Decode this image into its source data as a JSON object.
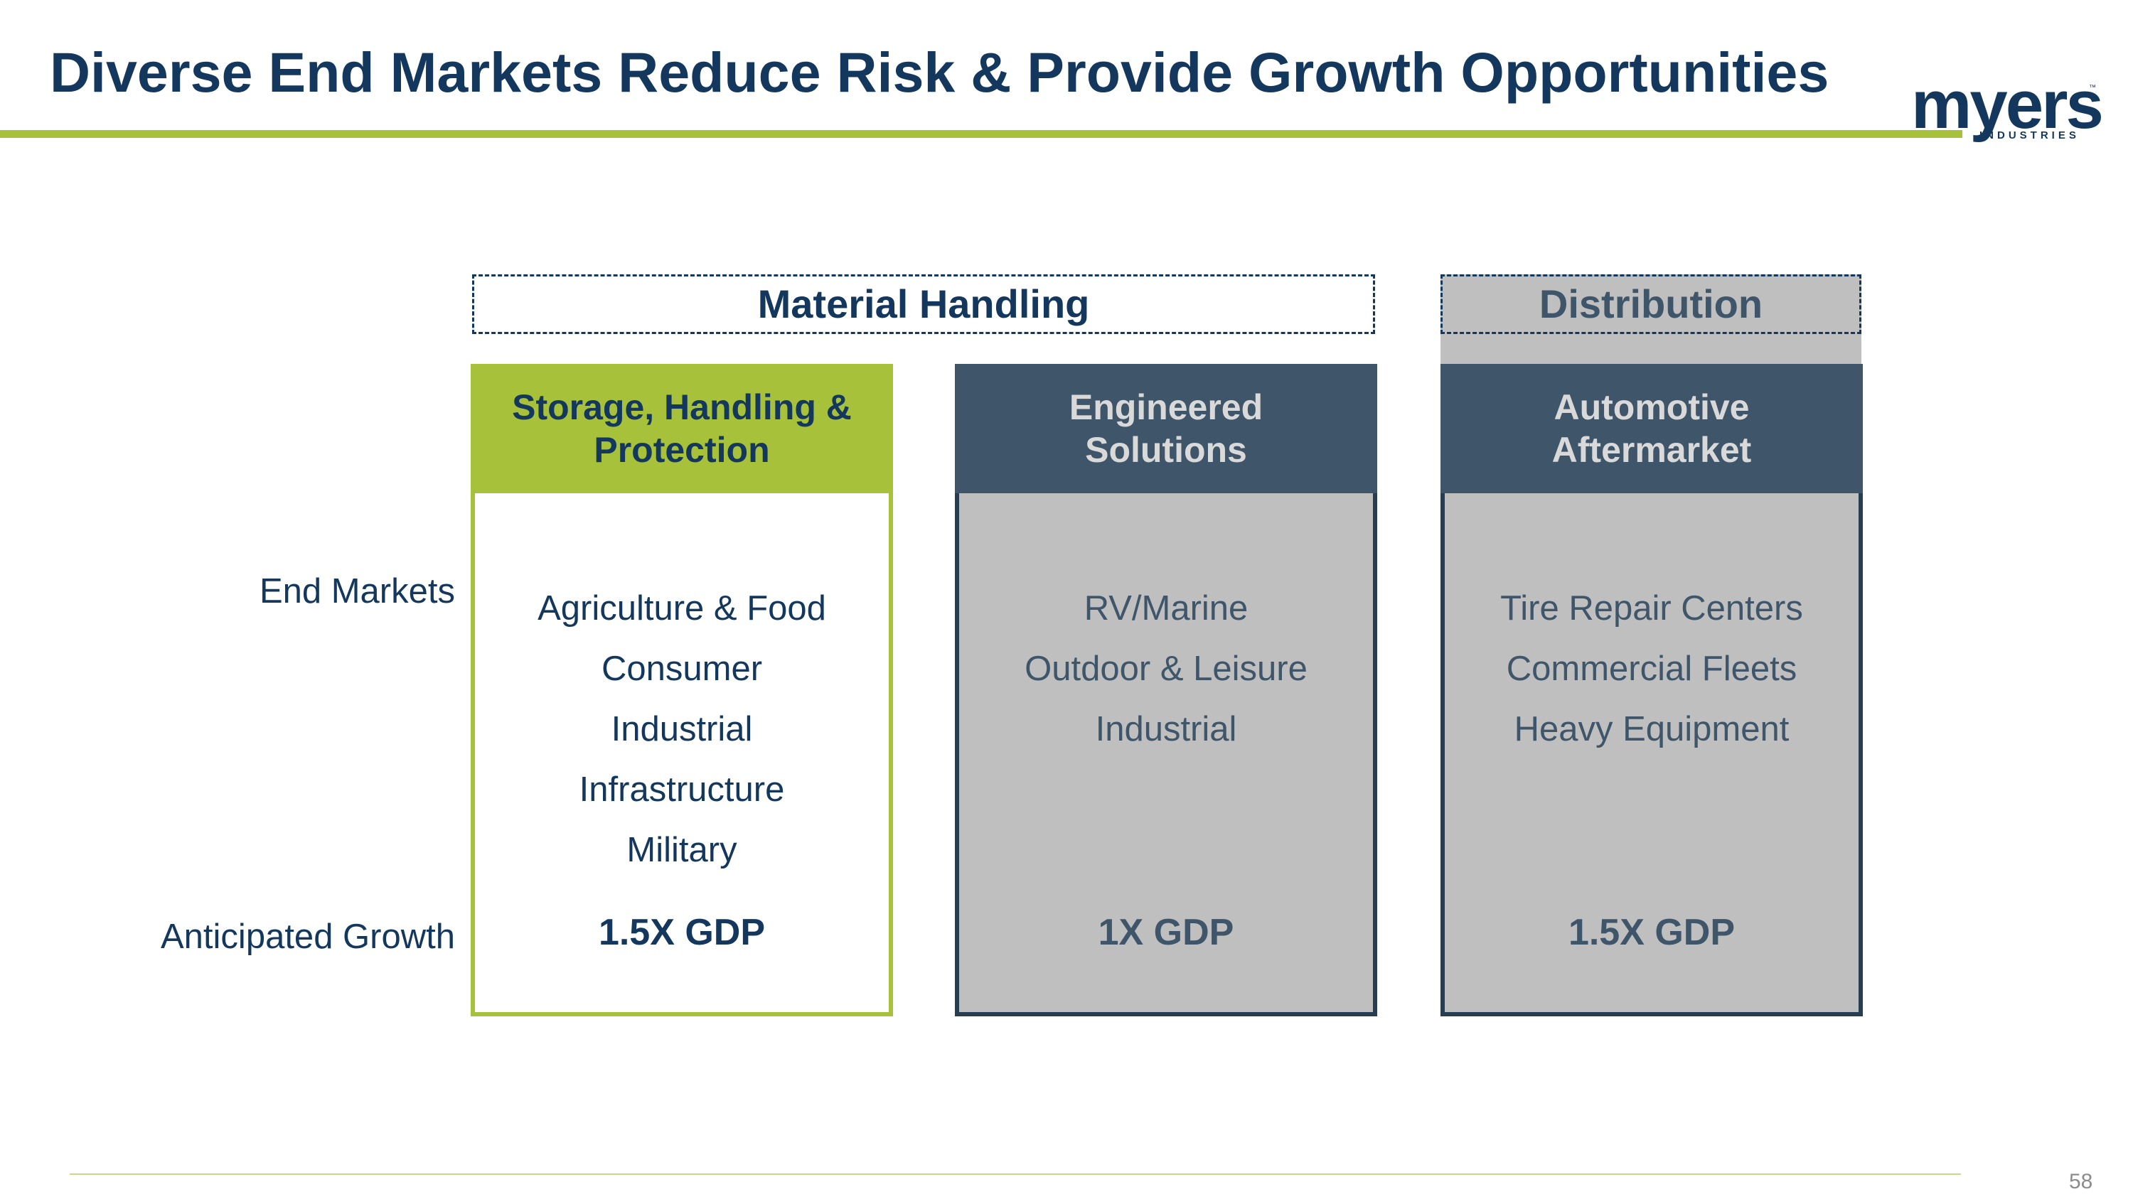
{
  "title": "Diverse End Markets Reduce Risk & Provide Growth Opportunities",
  "logo": {
    "word": "myers",
    "sub": "INDUSTRIES",
    "tm": "™"
  },
  "segments": {
    "material_handling": "Material Handling",
    "distribution": "Distribution"
  },
  "row_labels": {
    "end_markets": "End Markets",
    "growth": "Anticipated Growth"
  },
  "columns": [
    {
      "header_lines": [
        "Storage,  Handling &",
        "Protection"
      ],
      "end_markets": [
        "Agriculture & Food",
        "Consumer",
        "Industrial",
        "Infrastructure",
        "Military"
      ],
      "growth": "1.5X GDP"
    },
    {
      "header_lines": [
        "Engineered",
        "Solutions"
      ],
      "end_markets": [
        "RV/Marine",
        "Outdoor & Leisure",
        "Industrial"
      ],
      "growth": "1X GDP"
    },
    {
      "header_lines": [
        "Automotive",
        "Aftermarket"
      ],
      "end_markets": [
        "Tire Repair Centers",
        "Commercial Fleets",
        "Heavy Equipment"
      ],
      "growth": "1.5X GDP"
    }
  ],
  "page_number": "58",
  "colors": {
    "navy": "#14385d",
    "green": "#a7c13b",
    "slate": "#3f5569",
    "gray": "#bfbfbf"
  }
}
